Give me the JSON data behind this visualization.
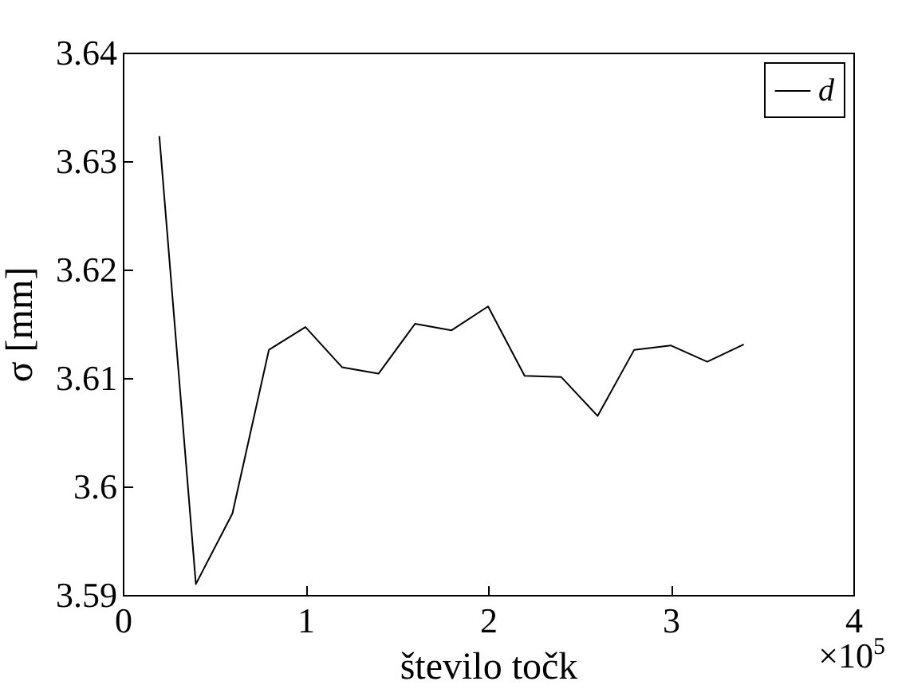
{
  "chart_data": {
    "type": "line",
    "xlabel": "število točk",
    "ylabel": "σ [mm]",
    "annotations": [
      "×10$^{5}$"
    ],
    "x": [
      0.2,
      0.4,
      0.6,
      0.8,
      1.0,
      1.2,
      1.4,
      1.6,
      1.8,
      2.0,
      2.2,
      2.4,
      2.6,
      2.8,
      3.0,
      3.2,
      3.4
    ],
    "series": [
      {
        "name": "d",
        "color": "#000000",
        "values": [
          3.6323,
          3.591,
          3.5975,
          3.6126,
          3.6147,
          3.611,
          3.6104,
          3.615,
          3.6144,
          3.6166,
          3.6102,
          3.6101,
          3.6065,
          3.6126,
          3.613,
          3.6115,
          3.6131
        ]
      }
    ],
    "xlim": [
      0,
      4
    ],
    "xticks": [
      0,
      1,
      2,
      3,
      4
    ],
    "ylim": [
      3.59,
      3.64
    ],
    "yticks": [
      3.59,
      3.6,
      3.61,
      3.62,
      3.63,
      3.64
    ],
    "grid": false,
    "legend": "top right",
    "marker": "none",
    "line_style": "solid"
  }
}
